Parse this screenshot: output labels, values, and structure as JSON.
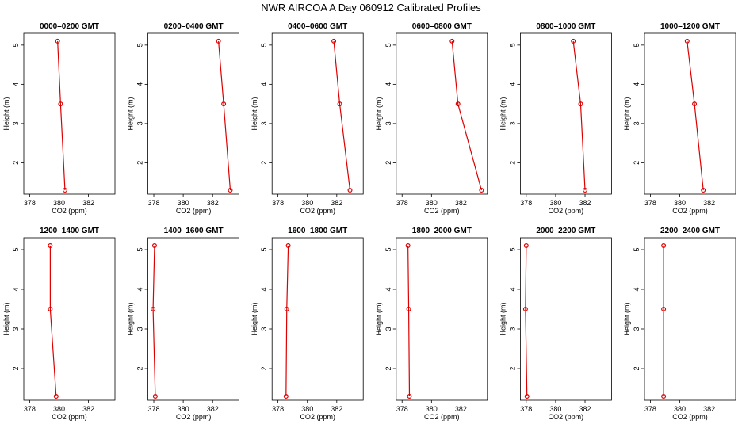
{
  "title": "NWR AIRCOA A  Day 060912  Calibrated Profiles",
  "chart_data": [
    {
      "type": "line",
      "title": "0000–0200 GMT",
      "x_label": "CO2 (ppm)",
      "y_label": "Height (m)",
      "x": [
        380.4,
        380.1,
        379.9
      ],
      "y": [
        1.3,
        3.5,
        5.1
      ],
      "color": "#dd0000",
      "xlim": [
        377.6,
        383.8
      ],
      "ylim": [
        1.2,
        5.3
      ],
      "xticks": [
        378,
        380,
        382
      ],
      "yticks": [
        2,
        3,
        4,
        5
      ]
    },
    {
      "type": "line",
      "title": "0200–0400 GMT",
      "x_label": "CO2 (ppm)",
      "y_label": "Height (m)",
      "x": [
        383.2,
        382.75,
        382.4
      ],
      "y": [
        1.3,
        3.5,
        5.1
      ],
      "color": "#dd0000",
      "xlim": [
        377.6,
        383.8
      ],
      "ylim": [
        1.2,
        5.3
      ],
      "xticks": [
        378,
        380,
        382
      ],
      "yticks": [
        2,
        3,
        4,
        5
      ]
    },
    {
      "type": "line",
      "title": "0400–0600 GMT",
      "x_label": "CO2 (ppm)",
      "y_label": "Height (m)",
      "x": [
        382.9,
        382.2,
        381.8
      ],
      "y": [
        1.3,
        3.5,
        5.1
      ],
      "color": "#dd0000",
      "xlim": [
        377.6,
        383.8
      ],
      "ylim": [
        1.2,
        5.3
      ],
      "xticks": [
        378,
        380,
        382
      ],
      "yticks": [
        2,
        3,
        4,
        5
      ]
    },
    {
      "type": "line",
      "title": "0600–0800 GMT",
      "x_label": "CO2 (ppm)",
      "y_label": "Height (m)",
      "x": [
        383.4,
        381.8,
        381.4
      ],
      "y": [
        1.3,
        3.5,
        5.1
      ],
      "color": "#dd0000",
      "xlim": [
        377.6,
        383.8
      ],
      "ylim": [
        1.2,
        5.3
      ],
      "xticks": [
        378,
        380,
        382
      ],
      "yticks": [
        2,
        3,
        4,
        5
      ]
    },
    {
      "type": "line",
      "title": "0800–1000 GMT",
      "x_label": "CO2 (ppm)",
      "y_label": "Height (m)",
      "x": [
        382.0,
        381.7,
        381.2
      ],
      "y": [
        1.3,
        3.5,
        5.1
      ],
      "color": "#dd0000",
      "xlim": [
        377.6,
        383.8
      ],
      "ylim": [
        1.2,
        5.3
      ],
      "xticks": [
        378,
        380,
        382
      ],
      "yticks": [
        2,
        3,
        4,
        5
      ]
    },
    {
      "type": "line",
      "title": "1000–1200 GMT",
      "x_label": "CO2 (ppm)",
      "y_label": "Height (m)",
      "x": [
        381.6,
        381.0,
        380.5
      ],
      "y": [
        1.3,
        3.5,
        5.1
      ],
      "color": "#dd0000",
      "xlim": [
        377.6,
        383.8
      ],
      "ylim": [
        1.2,
        5.3
      ],
      "xticks": [
        378,
        380,
        382
      ],
      "yticks": [
        2,
        3,
        4,
        5
      ]
    },
    {
      "type": "line",
      "title": "1200–1400 GMT",
      "x_label": "CO2 (ppm)",
      "y_label": "Height (m)",
      "x": [
        379.8,
        379.4,
        379.4
      ],
      "y": [
        1.3,
        3.5,
        5.1
      ],
      "color": "#dd0000",
      "xlim": [
        377.6,
        383.8
      ],
      "ylim": [
        1.2,
        5.3
      ],
      "xticks": [
        378,
        380,
        382
      ],
      "yticks": [
        2,
        3,
        4,
        5
      ]
    },
    {
      "type": "line",
      "title": "1400–1600 GMT",
      "x_label": "CO2 (ppm)",
      "y_label": "Height (m)",
      "x": [
        378.1,
        377.95,
        378.05
      ],
      "y": [
        1.3,
        3.5,
        5.1
      ],
      "color": "#dd0000",
      "xlim": [
        377.6,
        383.8
      ],
      "ylim": [
        1.2,
        5.3
      ],
      "xticks": [
        378,
        380,
        382
      ],
      "yticks": [
        2,
        3,
        4,
        5
      ]
    },
    {
      "type": "line",
      "title": "1600–1800 GMT",
      "x_label": "CO2 (ppm)",
      "y_label": "Height (m)",
      "x": [
        378.55,
        378.6,
        378.7
      ],
      "y": [
        1.3,
        3.5,
        5.1
      ],
      "color": "#dd0000",
      "xlim": [
        377.6,
        383.8
      ],
      "ylim": [
        1.2,
        5.3
      ],
      "xticks": [
        378,
        380,
        382
      ],
      "yticks": [
        2,
        3,
        4,
        5
      ]
    },
    {
      "type": "line",
      "title": "1800–2000 GMT",
      "x_label": "CO2 (ppm)",
      "y_label": "Height (m)",
      "x": [
        378.5,
        378.45,
        378.4
      ],
      "y": [
        1.3,
        3.5,
        5.1
      ],
      "color": "#dd0000",
      "xlim": [
        377.6,
        383.8
      ],
      "ylim": [
        1.2,
        5.3
      ],
      "xticks": [
        378,
        380,
        382
      ],
      "yticks": [
        2,
        3,
        4,
        5
      ]
    },
    {
      "type": "line",
      "title": "2000–2200 GMT",
      "x_label": "CO2 (ppm)",
      "y_label": "Height (m)",
      "x": [
        378.05,
        377.95,
        378.0
      ],
      "y": [
        1.3,
        3.5,
        5.1
      ],
      "color": "#dd0000",
      "xlim": [
        377.6,
        383.8
      ],
      "ylim": [
        1.2,
        5.3
      ],
      "xticks": [
        378,
        380,
        382
      ],
      "yticks": [
        2,
        3,
        4,
        5
      ]
    },
    {
      "type": "line",
      "title": "2200–2400 GMT",
      "x_label": "CO2 (ppm)",
      "y_label": "Height (m)",
      "x": [
        378.9,
        378.9,
        378.9
      ],
      "y": [
        1.3,
        3.5,
        5.1
      ],
      "color": "#dd0000",
      "xlim": [
        377.6,
        383.8
      ],
      "ylim": [
        1.2,
        5.3
      ],
      "xticks": [
        378,
        380,
        382
      ],
      "yticks": [
        2,
        3,
        4,
        5
      ]
    }
  ]
}
